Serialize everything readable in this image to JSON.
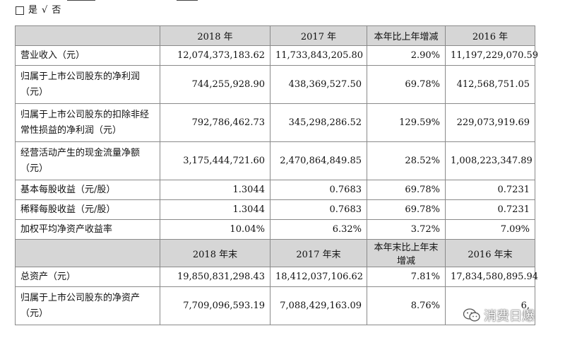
{
  "top_line": {
    "yes_label": "是",
    "checkmark": "√",
    "no_label": "否"
  },
  "table": {
    "header_1": [
      "2018 年",
      "2017 年",
      "本年比上年增减",
      "2016 年"
    ],
    "rows_1": [
      {
        "label": "营业收入（元）",
        "values": [
          "12,074,373,183.62",
          "11,733,843,205.80",
          "2.90%",
          "11,197,229,070.59"
        ]
      },
      {
        "label": "归属于上市公司股东的净利润（元）",
        "values": [
          "744,255,928.90",
          "438,369,527.50",
          "69.78%",
          "412,568,751.05"
        ]
      },
      {
        "label": "归属于上市公司股东的扣除非经常性损益的净利润（元）",
        "values": [
          "792,786,462.73",
          "345,298,286.52",
          "129.59%",
          "229,073,919.69"
        ]
      },
      {
        "label": "经营活动产生的现金流量净额（元）",
        "values": [
          "3,175,444,721.60",
          "2,470,864,849.85",
          "28.52%",
          "1,008,223,347.89"
        ]
      },
      {
        "label": "基本每股收益（元/股）",
        "values": [
          "1.3044",
          "0.7683",
          "69.78%",
          "0.7231"
        ]
      },
      {
        "label": "稀释每股收益（元/股）",
        "values": [
          "1.3044",
          "0.7683",
          "69.78%",
          "0.7231"
        ]
      },
      {
        "label": "加权平均净资产收益率",
        "values": [
          "10.04%",
          "6.32%",
          "3.72%",
          "7.09%"
        ]
      }
    ],
    "header_2": [
      "2018 年末",
      "2017 年末",
      "本年末比上年末增减",
      "2016 年末"
    ],
    "rows_2": [
      {
        "label": "总资产（元）",
        "values": [
          "19,850,831,298.43",
          "18,412,037,106.62",
          "7.81%",
          "17,834,580,895.94"
        ]
      },
      {
        "label": "归属于上市公司股东的净资产（元）",
        "values": [
          "7,709,096,593.19",
          "7,088,429,163.09",
          "8.76%",
          "6,"
        ]
      }
    ]
  },
  "watermark": {
    "text": "消费日爆",
    "icon": "wechat-icon"
  }
}
